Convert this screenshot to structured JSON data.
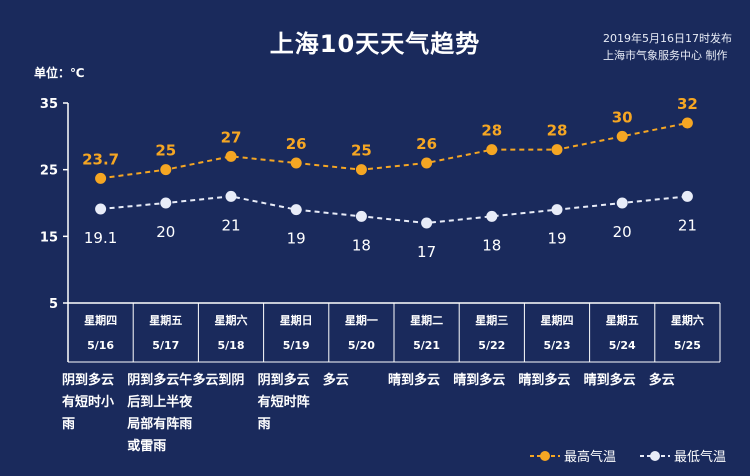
{
  "title": "上海10天天气趋势",
  "issue_lines": [
    "2019年5月16日17时发布",
    "上海市气象服务中心 制作"
  ],
  "unit": "单位：℃",
  "colors": {
    "background": "#1a2a5c",
    "high": "#f5a623",
    "low": "#e8ecf8",
    "grid": "#ffffff"
  },
  "chart_data": {
    "type": "line",
    "ylim": [
      5,
      35
    ],
    "yticks": [
      "35",
      "25",
      "15",
      "5"
    ],
    "categories": [
      {
        "weekday": "星期四",
        "date": "5/16"
      },
      {
        "weekday": "星期五",
        "date": "5/17"
      },
      {
        "weekday": "星期六",
        "date": "5/18"
      },
      {
        "weekday": "星期日",
        "date": "5/19"
      },
      {
        "weekday": "星期一",
        "date": "5/20"
      },
      {
        "weekday": "星期二",
        "date": "5/21"
      },
      {
        "weekday": "星期三",
        "date": "5/22"
      },
      {
        "weekday": "星期四",
        "date": "5/23"
      },
      {
        "weekday": "星期五",
        "date": "5/24"
      },
      {
        "weekday": "星期六",
        "date": "5/25"
      }
    ],
    "series": [
      {
        "name": "最高气温",
        "values": [
          23.7,
          25,
          27,
          26,
          25,
          26,
          28,
          28,
          30,
          32
        ],
        "labels": [
          "23.7",
          "25",
          "27",
          "26",
          "25",
          "26",
          "28",
          "28",
          "30",
          "32"
        ]
      },
      {
        "name": "最低气温",
        "values": [
          19.1,
          20,
          21,
          19,
          18,
          17,
          18,
          19,
          20,
          21
        ],
        "labels": [
          "19.1",
          "20",
          "21",
          "19",
          "18",
          "17",
          "18",
          "19",
          "20",
          "21"
        ]
      }
    ],
    "legend_position": "bottom-right"
  },
  "weather": [
    "阴到多云\n有短时小\n雨",
    "阴到多云午\n后到上半夜\n局部有阵雨\n或雷雨",
    "多云到阴",
    "阴到多云\n有短时阵\n雨",
    "多云",
    "晴到多云",
    "晴到多云",
    "晴到多云",
    "晴到多云",
    "多云"
  ]
}
